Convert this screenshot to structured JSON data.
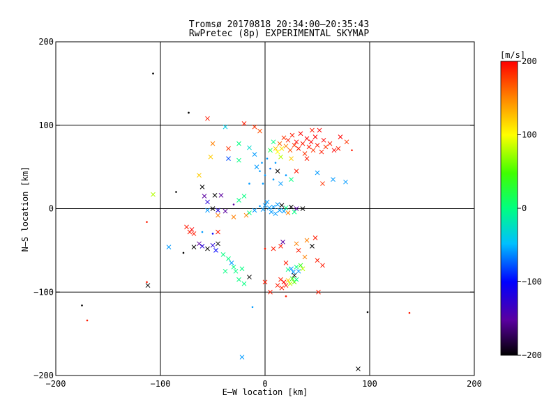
{
  "title": "Tromsø 20170818 20:34:00–20:35:43",
  "subtitle": "RwPretec (8p) EXPERIMENTAL SKYMAP",
  "chart_data": {
    "type": "scatter",
    "xlabel": "E–W location [km]",
    "ylabel": "N–S location [km]",
    "xlim": [
      -200,
      200
    ],
    "ylim": [
      -200,
      200
    ],
    "xticks": [
      -200,
      -100,
      0,
      100,
      200
    ],
    "yticks": [
      -200,
      -100,
      0,
      100,
      200
    ],
    "xtick_labels": [
      "−200",
      "−100",
      "0",
      "100",
      "200"
    ],
    "ytick_labels": [
      "−200",
      "−100",
      "0",
      "100",
      "200"
    ],
    "grid": "at ±100 and 0 km",
    "colorbar": {
      "label": "[m/s]",
      "range": [
        -200,
        200
      ],
      "ticks": [
        -200,
        -100,
        0,
        100,
        200
      ],
      "tick_labels": [
        "−200",
        "−100",
        "0",
        "100",
        "200"
      ],
      "colors": [
        "#000000",
        "#7f00ff",
        "#0000ff",
        "#00ffff",
        "#00ff00",
        "#ffff00",
        "#ff0000"
      ]
    },
    "marker_types": [
      "x",
      "dot"
    ],
    "points": [
      {
        "x": -107,
        "y": 162,
        "v": -200,
        "m": "dot"
      },
      {
        "x": -73,
        "y": 115,
        "v": -200,
        "m": "dot"
      },
      {
        "x": -55,
        "y": 108,
        "v": 190,
        "m": "x"
      },
      {
        "x": -20,
        "y": 102,
        "v": 190,
        "m": "x"
      },
      {
        "x": -10,
        "y": 98,
        "v": 180,
        "m": "x"
      },
      {
        "x": -5,
        "y": 93,
        "v": 170,
        "m": "x"
      },
      {
        "x": -38,
        "y": 98,
        "v": -40,
        "m": "x"
      },
      {
        "x": -50,
        "y": 78,
        "v": 150,
        "m": "x"
      },
      {
        "x": -35,
        "y": 72,
        "v": 180,
        "m": "x"
      },
      {
        "x": -25,
        "y": 78,
        "v": 0,
        "m": "x"
      },
      {
        "x": -15,
        "y": 73,
        "v": -30,
        "m": "x"
      },
      {
        "x": -52,
        "y": 62,
        "v": 120,
        "m": "x"
      },
      {
        "x": -63,
        "y": 40,
        "v": 120,
        "m": "x"
      },
      {
        "x": -35,
        "y": 60,
        "v": -80,
        "m": "x"
      },
      {
        "x": -25,
        "y": 58,
        "v": 0,
        "m": "x"
      },
      {
        "x": -10,
        "y": 65,
        "v": -60,
        "m": "x"
      },
      {
        "x": -8,
        "y": 50,
        "v": -60,
        "m": "x"
      },
      {
        "x": -5,
        "y": 45,
        "v": -60,
        "m": "dot"
      },
      {
        "x": -3,
        "y": 55,
        "v": -60,
        "m": "dot"
      },
      {
        "x": 0,
        "y": 40,
        "v": -60,
        "m": "dot"
      },
      {
        "x": 2,
        "y": 60,
        "v": -60,
        "m": "dot"
      },
      {
        "x": 5,
        "y": 48,
        "v": -70,
        "m": "dot"
      },
      {
        "x": 8,
        "y": 35,
        "v": -60,
        "m": "dot"
      },
      {
        "x": 10,
        "y": 55,
        "v": -60,
        "m": "dot"
      },
      {
        "x": 12,
        "y": 45,
        "v": -200,
        "m": "x"
      },
      {
        "x": 15,
        "y": 30,
        "v": -60,
        "m": "x"
      },
      {
        "x": 20,
        "y": 40,
        "v": -60,
        "m": "dot"
      },
      {
        "x": 25,
        "y": 35,
        "v": 0,
        "m": "x"
      },
      {
        "x": -15,
        "y": 30,
        "v": -60,
        "m": "dot"
      },
      {
        "x": -2,
        "y": 30,
        "v": -60,
        "m": "dot"
      },
      {
        "x": 5,
        "y": 70,
        "v": 20,
        "m": "x"
      },
      {
        "x": 8,
        "y": 80,
        "v": 0,
        "m": "x"
      },
      {
        "x": 10,
        "y": 72,
        "v": 120,
        "m": "x"
      },
      {
        "x": 12,
        "y": 68,
        "v": 100,
        "m": "x"
      },
      {
        "x": 14,
        "y": 78,
        "v": 160,
        "m": "x"
      },
      {
        "x": 16,
        "y": 72,
        "v": 110,
        "m": "x"
      },
      {
        "x": 18,
        "y": 85,
        "v": 180,
        "m": "x"
      },
      {
        "x": 20,
        "y": 75,
        "v": 150,
        "m": "x"
      },
      {
        "x": 22,
        "y": 82,
        "v": 190,
        "m": "x"
      },
      {
        "x": 24,
        "y": 70,
        "v": 170,
        "m": "x"
      },
      {
        "x": 26,
        "y": 88,
        "v": 190,
        "m": "x"
      },
      {
        "x": 28,
        "y": 76,
        "v": 180,
        "m": "x"
      },
      {
        "x": 30,
        "y": 80,
        "v": 200,
        "m": "x"
      },
      {
        "x": 32,
        "y": 72,
        "v": 190,
        "m": "x"
      },
      {
        "x": 34,
        "y": 90,
        "v": 200,
        "m": "x"
      },
      {
        "x": 36,
        "y": 78,
        "v": 190,
        "m": "x"
      },
      {
        "x": 38,
        "y": 66,
        "v": 180,
        "m": "x"
      },
      {
        "x": 40,
        "y": 84,
        "v": 200,
        "m": "x"
      },
      {
        "x": 42,
        "y": 74,
        "v": 190,
        "m": "x"
      },
      {
        "x": 44,
        "y": 80,
        "v": 200,
        "m": "x"
      },
      {
        "x": 46,
        "y": 70,
        "v": 180,
        "m": "x"
      },
      {
        "x": 48,
        "y": 86,
        "v": 200,
        "m": "x"
      },
      {
        "x": 50,
        "y": 76,
        "v": 190,
        "m": "x"
      },
      {
        "x": 52,
        "y": 94,
        "v": 200,
        "m": "x"
      },
      {
        "x": 54,
        "y": 68,
        "v": 190,
        "m": "x"
      },
      {
        "x": 56,
        "y": 82,
        "v": 200,
        "m": "x"
      },
      {
        "x": 58,
        "y": 74,
        "v": 180,
        "m": "x"
      },
      {
        "x": 62,
        "y": 78,
        "v": 190,
        "m": "x"
      },
      {
        "x": 66,
        "y": 70,
        "v": 200,
        "m": "x"
      },
      {
        "x": 70,
        "y": 72,
        "v": 190,
        "m": "x"
      },
      {
        "x": 72,
        "y": 86,
        "v": 200,
        "m": "x"
      },
      {
        "x": 78,
        "y": 80,
        "v": 180,
        "m": "x"
      },
      {
        "x": 83,
        "y": 70,
        "v": 190,
        "m": "dot"
      },
      {
        "x": 45,
        "y": 94,
        "v": 190,
        "m": "x"
      },
      {
        "x": 40,
        "y": 60,
        "v": 190,
        "m": "x"
      },
      {
        "x": 25,
        "y": 60,
        "v": 120,
        "m": "x"
      },
      {
        "x": 15,
        "y": 62,
        "v": 80,
        "m": "x"
      },
      {
        "x": 50,
        "y": 43,
        "v": -60,
        "m": "x"
      },
      {
        "x": 65,
        "y": 35,
        "v": -60,
        "m": "x"
      },
      {
        "x": 77,
        "y": 32,
        "v": -60,
        "m": "x"
      },
      {
        "x": 55,
        "y": 30,
        "v": 180,
        "m": "x"
      },
      {
        "x": 30,
        "y": 45,
        "v": 190,
        "m": "x"
      },
      {
        "x": -107,
        "y": 17,
        "v": 80,
        "m": "x"
      },
      {
        "x": -85,
        "y": 20,
        "v": -200,
        "m": "dot"
      },
      {
        "x": -60,
        "y": 26,
        "v": -200,
        "m": "x"
      },
      {
        "x": -58,
        "y": 15,
        "v": -150,
        "m": "x"
      },
      {
        "x": -55,
        "y": 8,
        "v": -120,
        "m": "x"
      },
      {
        "x": -48,
        "y": 16,
        "v": -200,
        "m": "x"
      },
      {
        "x": -42,
        "y": 16,
        "v": -150,
        "m": "x"
      },
      {
        "x": -50,
        "y": 0,
        "v": -200,
        "m": "x"
      },
      {
        "x": -55,
        "y": -2,
        "v": -60,
        "m": "x"
      },
      {
        "x": -45,
        "y": -2,
        "v": -120,
        "m": "x"
      },
      {
        "x": -38,
        "y": -3,
        "v": -150,
        "m": "x"
      },
      {
        "x": -30,
        "y": 5,
        "v": -150,
        "m": "dot"
      },
      {
        "x": -25,
        "y": 10,
        "v": 0,
        "m": "x"
      },
      {
        "x": -20,
        "y": 15,
        "v": 0,
        "m": "x"
      },
      {
        "x": -15,
        "y": -5,
        "v": 0,
        "m": "x"
      },
      {
        "x": -18,
        "y": -8,
        "v": 150,
        "m": "x"
      },
      {
        "x": -10,
        "y": -2,
        "v": -60,
        "m": "x"
      },
      {
        "x": -5,
        "y": 3,
        "v": -60,
        "m": "dot"
      },
      {
        "x": -2,
        "y": -1,
        "v": -60,
        "m": "x"
      },
      {
        "x": 0,
        "y": 4,
        "v": -60,
        "m": "x"
      },
      {
        "x": 2,
        "y": 8,
        "v": -60,
        "m": "x"
      },
      {
        "x": 4,
        "y": 1,
        "v": -60,
        "m": "x"
      },
      {
        "x": 6,
        "y": -4,
        "v": -60,
        "m": "x"
      },
      {
        "x": 8,
        "y": 2,
        "v": -60,
        "m": "x"
      },
      {
        "x": 10,
        "y": -6,
        "v": -60,
        "m": "x"
      },
      {
        "x": 12,
        "y": 5,
        "v": -60,
        "m": "x"
      },
      {
        "x": 14,
        "y": -2,
        "v": -60,
        "m": "x"
      },
      {
        "x": 16,
        "y": 4,
        "v": -200,
        "m": "x"
      },
      {
        "x": 18,
        "y": -3,
        "v": -60,
        "m": "x"
      },
      {
        "x": 20,
        "y": 1,
        "v": 0,
        "m": "x"
      },
      {
        "x": 22,
        "y": -5,
        "v": 150,
        "m": "x"
      },
      {
        "x": 25,
        "y": 2,
        "v": -200,
        "m": "x"
      },
      {
        "x": 28,
        "y": -4,
        "v": 0,
        "m": "x"
      },
      {
        "x": 30,
        "y": 0,
        "v": -150,
        "m": "x"
      },
      {
        "x": 36,
        "y": 0,
        "v": -200,
        "m": "x"
      },
      {
        "x": -45,
        "y": -8,
        "v": 150,
        "m": "x"
      },
      {
        "x": -30,
        "y": -10,
        "v": 150,
        "m": "x"
      },
      {
        "x": -75,
        "y": -22,
        "v": 190,
        "m": "x"
      },
      {
        "x": -72,
        "y": -28,
        "v": 190,
        "m": "x"
      },
      {
        "x": -70,
        "y": -25,
        "v": 200,
        "m": "x"
      },
      {
        "x": -68,
        "y": -30,
        "v": 190,
        "m": "x"
      },
      {
        "x": -60,
        "y": -28,
        "v": -60,
        "m": "dot"
      },
      {
        "x": -50,
        "y": -30,
        "v": -100,
        "m": "dot"
      },
      {
        "x": -45,
        "y": -28,
        "v": 190,
        "m": "x"
      },
      {
        "x": -113,
        "y": -16,
        "v": 190,
        "m": "dot"
      },
      {
        "x": -92,
        "y": -46,
        "v": -60,
        "m": "x"
      },
      {
        "x": -78,
        "y": -53,
        "v": -200,
        "m": "dot"
      },
      {
        "x": -68,
        "y": -46,
        "v": -200,
        "m": "x"
      },
      {
        "x": -63,
        "y": -42,
        "v": -150,
        "m": "x"
      },
      {
        "x": -60,
        "y": -45,
        "v": -120,
        "m": "x"
      },
      {
        "x": -55,
        "y": -48,
        "v": -200,
        "m": "x"
      },
      {
        "x": -50,
        "y": -44,
        "v": -120,
        "m": "x"
      },
      {
        "x": -47,
        "y": -50,
        "v": -100,
        "m": "x"
      },
      {
        "x": -45,
        "y": -42,
        "v": -200,
        "m": "x"
      },
      {
        "x": -40,
        "y": -55,
        "v": 0,
        "m": "x"
      },
      {
        "x": -35,
        "y": -60,
        "v": 0,
        "m": "x"
      },
      {
        "x": -30,
        "y": -70,
        "v": 0,
        "m": "x"
      },
      {
        "x": -28,
        "y": -75,
        "v": 0,
        "m": "x"
      },
      {
        "x": -32,
        "y": -65,
        "v": -60,
        "m": "x"
      },
      {
        "x": -22,
        "y": -72,
        "v": 0,
        "m": "x"
      },
      {
        "x": -38,
        "y": -75,
        "v": 0,
        "m": "x"
      },
      {
        "x": -25,
        "y": -85,
        "v": 0,
        "m": "x"
      },
      {
        "x": -15,
        "y": -82,
        "v": -200,
        "m": "x"
      },
      {
        "x": -20,
        "y": -90,
        "v": 0,
        "m": "x"
      },
      {
        "x": -12,
        "y": -118,
        "v": -60,
        "m": "dot"
      },
      {
        "x": 0,
        "y": -48,
        "v": 190,
        "m": "dot"
      },
      {
        "x": 8,
        "y": -48,
        "v": 190,
        "m": "x"
      },
      {
        "x": 15,
        "y": -45,
        "v": 190,
        "m": "x"
      },
      {
        "x": 17,
        "y": -40,
        "v": -150,
        "m": "x"
      },
      {
        "x": 30,
        "y": -42,
        "v": 150,
        "m": "x"
      },
      {
        "x": 32,
        "y": -50,
        "v": 190,
        "m": "x"
      },
      {
        "x": 40,
        "y": -38,
        "v": 150,
        "m": "x"
      },
      {
        "x": 45,
        "y": -45,
        "v": -200,
        "m": "x"
      },
      {
        "x": 48,
        "y": -35,
        "v": 190,
        "m": "x"
      },
      {
        "x": 38,
        "y": -58,
        "v": 150,
        "m": "x"
      },
      {
        "x": 50,
        "y": -62,
        "v": 190,
        "m": "x"
      },
      {
        "x": 55,
        "y": -68,
        "v": 190,
        "m": "x"
      },
      {
        "x": 20,
        "y": -65,
        "v": 190,
        "m": "x"
      },
      {
        "x": 22,
        "y": -73,
        "v": 0,
        "m": "x"
      },
      {
        "x": 25,
        "y": -72,
        "v": -60,
        "m": "x"
      },
      {
        "x": 27,
        "y": -76,
        "v": -60,
        "m": "x"
      },
      {
        "x": 28,
        "y": -80,
        "v": -200,
        "m": "x"
      },
      {
        "x": 30,
        "y": -70,
        "v": 0,
        "m": "x"
      },
      {
        "x": 32,
        "y": -75,
        "v": -60,
        "m": "x"
      },
      {
        "x": 34,
        "y": -68,
        "v": 40,
        "m": "x"
      },
      {
        "x": 36,
        "y": -72,
        "v": 80,
        "m": "x"
      },
      {
        "x": 15,
        "y": -85,
        "v": 190,
        "m": "x"
      },
      {
        "x": 18,
        "y": -88,
        "v": 200,
        "m": "x"
      },
      {
        "x": 20,
        "y": -92,
        "v": 190,
        "m": "x"
      },
      {
        "x": 22,
        "y": -86,
        "v": 120,
        "m": "x"
      },
      {
        "x": 24,
        "y": -90,
        "v": 80,
        "m": "x"
      },
      {
        "x": 26,
        "y": -84,
        "v": 40,
        "m": "x"
      },
      {
        "x": 28,
        "y": -88,
        "v": 60,
        "m": "x"
      },
      {
        "x": 30,
        "y": -85,
        "v": 0,
        "m": "x"
      },
      {
        "x": 16,
        "y": -95,
        "v": 190,
        "m": "x"
      },
      {
        "x": 12,
        "y": -92,
        "v": 190,
        "m": "x"
      },
      {
        "x": 20,
        "y": -105,
        "v": 190,
        "m": "dot"
      },
      {
        "x": 0,
        "y": -88,
        "v": 190,
        "m": "x"
      },
      {
        "x": 5,
        "y": -100,
        "v": 190,
        "m": "x"
      },
      {
        "x": 51,
        "y": -100,
        "v": 190,
        "m": "x"
      },
      {
        "x": -112,
        "y": -92,
        "v": -200,
        "m": "x"
      },
      {
        "x": -113,
        "y": -88,
        "v": 190,
        "m": "dot"
      },
      {
        "x": -175,
        "y": -116,
        "v": -200,
        "m": "dot"
      },
      {
        "x": -170,
        "y": -134,
        "v": 190,
        "m": "dot"
      },
      {
        "x": -22,
        "y": -178,
        "v": -60,
        "m": "x"
      },
      {
        "x": 89,
        "y": -192,
        "v": -200,
        "m": "x"
      },
      {
        "x": 98,
        "y": -124,
        "v": -200,
        "m": "dot"
      },
      {
        "x": 138,
        "y": -125,
        "v": 190,
        "m": "dot"
      }
    ]
  }
}
